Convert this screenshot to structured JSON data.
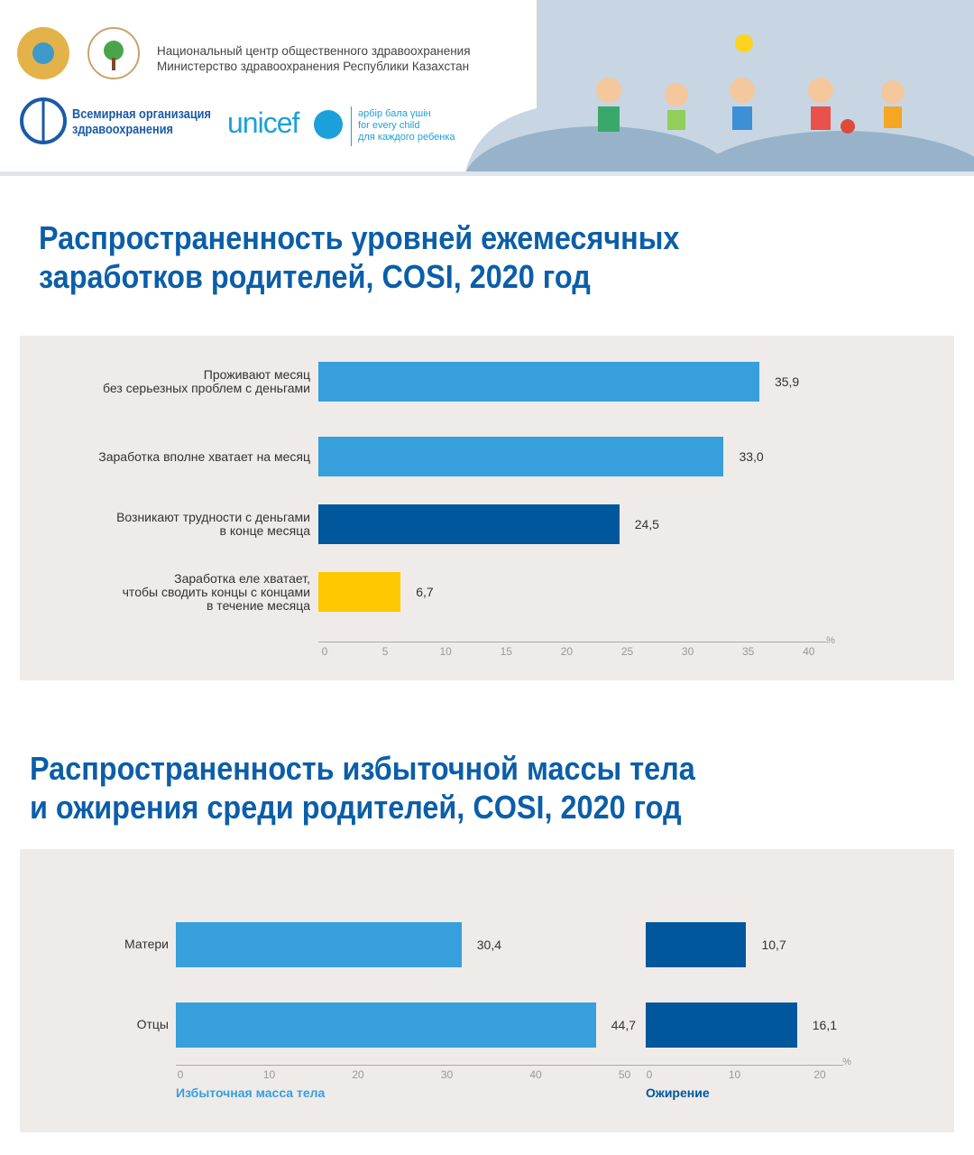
{
  "header": {
    "org_line1": "Национальный центр общественного здравоохранения",
    "org_line2": "Министерство здравоохранения Республики Казахстан",
    "who_line1": "Всемирная организация",
    "who_line2": "здравоохранения",
    "unicef": "unicef",
    "unicef_tag1": "әрбір бала үшін",
    "unicef_tag2": "for every child",
    "unicef_tag3": "для каждого ребенка"
  },
  "colors": {
    "light": "#379fdb",
    "dark": "#00579b",
    "yellow": "#ffc800",
    "title": "#0b5ea8"
  },
  "chart_data": [
    {
      "type": "bar",
      "orientation": "horizontal",
      "title": "Распространенность уровней ежемесячных заработков родителей, COSI, 2020 год",
      "title_line1": "Распространенность уровней ежемесячных",
      "title_line2": "заработков родителей, COSI, 2020 год",
      "categories": [
        [
          "Проживают месяц",
          "без серьезных проблем с деньгами"
        ],
        [
          "Заработка вполне хватает на месяц"
        ],
        [
          "Возникают трудности с деньгами",
          "в конце месяца"
        ],
        [
          "Заработка еле хватает,",
          "чтобы сводить концы с концами",
          "в течение месяца"
        ]
      ],
      "values": [
        35.9,
        33.0,
        24.5,
        6.7
      ],
      "labels": [
        "35,9",
        "33,0",
        "24,5",
        "6,7"
      ],
      "bar_colors": [
        "#379fdb",
        "#379fdb",
        "#00579b",
        "#ffc800"
      ],
      "xlim": [
        0,
        40
      ],
      "ticks": [
        "0",
        "5",
        "10",
        "15",
        "20",
        "25",
        "30",
        "35",
        "40"
      ],
      "unit": "%"
    },
    {
      "type": "bar",
      "orientation": "horizontal",
      "title_line1": "Распространенность избыточной массы тела",
      "title_line2": "и ожирения среди родителей, COSI, 2020 год",
      "categories": [
        "Матери",
        "Отцы"
      ],
      "series": [
        {
          "name": "Избыточная масса тела",
          "values": [
            30.4,
            44.7
          ],
          "labels": [
            "30,4",
            "44,7"
          ],
          "color": "#379fdb",
          "xlim": [
            0,
            50
          ],
          "ticks": [
            "0",
            "10",
            "20",
            "30",
            "40",
            "50"
          ]
        },
        {
          "name": "Ожирение",
          "values": [
            10.7,
            16.1
          ],
          "labels": [
            "10,7",
            "16,1"
          ],
          "color": "#00579b",
          "xlim": [
            0,
            20
          ],
          "ticks": [
            "0",
            "10",
            "20"
          ]
        }
      ],
      "unit": "%"
    }
  ]
}
